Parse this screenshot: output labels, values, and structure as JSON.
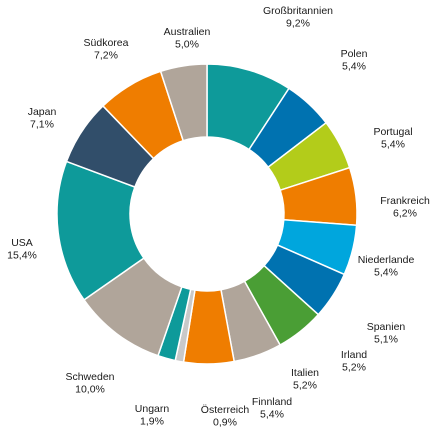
{
  "chart_data": {
    "type": "pie",
    "variant": "donut",
    "start": "top, clockwise",
    "legend": "none (direct labels)",
    "slices": [
      {
        "label": "Großbritannien",
        "value": 9.2,
        "value_label": "9,2%",
        "color": "#0e9a9a"
      },
      {
        "label": "Polen",
        "value": 5.4,
        "value_label": "5,4%",
        "color": "#0072b0"
      },
      {
        "label": "Portugal",
        "value": 5.4,
        "value_label": "5,4%",
        "color": "#b3cc1a"
      },
      {
        "label": "Frankreich",
        "value": 6.2,
        "value_label": "6,2%",
        "color": "#ef7d00"
      },
      {
        "label": "Niederlande",
        "value": 5.4,
        "value_label": "5,4%",
        "color": "#00a6dd"
      },
      {
        "label": "Spanien",
        "value": 5.1,
        "value_label": "5,1%",
        "color": "#0072b0"
      },
      {
        "label": "Irland",
        "value": 5.2,
        "value_label": "5,2%",
        "color": "#4a9e35"
      },
      {
        "label": "Italien",
        "value": 5.2,
        "value_label": "5,2%",
        "color": "#b0a59a"
      },
      {
        "label": "Finnland",
        "value": 5.4,
        "value_label": "5,4%",
        "color": "#ef7d00"
      },
      {
        "label": "Österreich",
        "value": 0.9,
        "value_label": "0,9%",
        "color": "#c9c9c9"
      },
      {
        "label": "Ungarn",
        "value": 1.9,
        "value_label": "1,9%",
        "color": "#0e9a9a"
      },
      {
        "label": "Schweden",
        "value": 10.0,
        "value_label": "10,0%",
        "color": "#b0a59a"
      },
      {
        "label": "USA",
        "value": 15.4,
        "value_label": "15,4%",
        "color": "#0e9a9a"
      },
      {
        "label": "Japan",
        "value": 7.1,
        "value_label": "7,1%",
        "color": "#314e6a"
      },
      {
        "label": "Südkorea",
        "value": 7.2,
        "value_label": "7,2%",
        "color": "#ef7d00"
      },
      {
        "label": "Australien",
        "value": 5.0,
        "value_label": "5,0%",
        "color": "#b0a59a"
      }
    ]
  }
}
